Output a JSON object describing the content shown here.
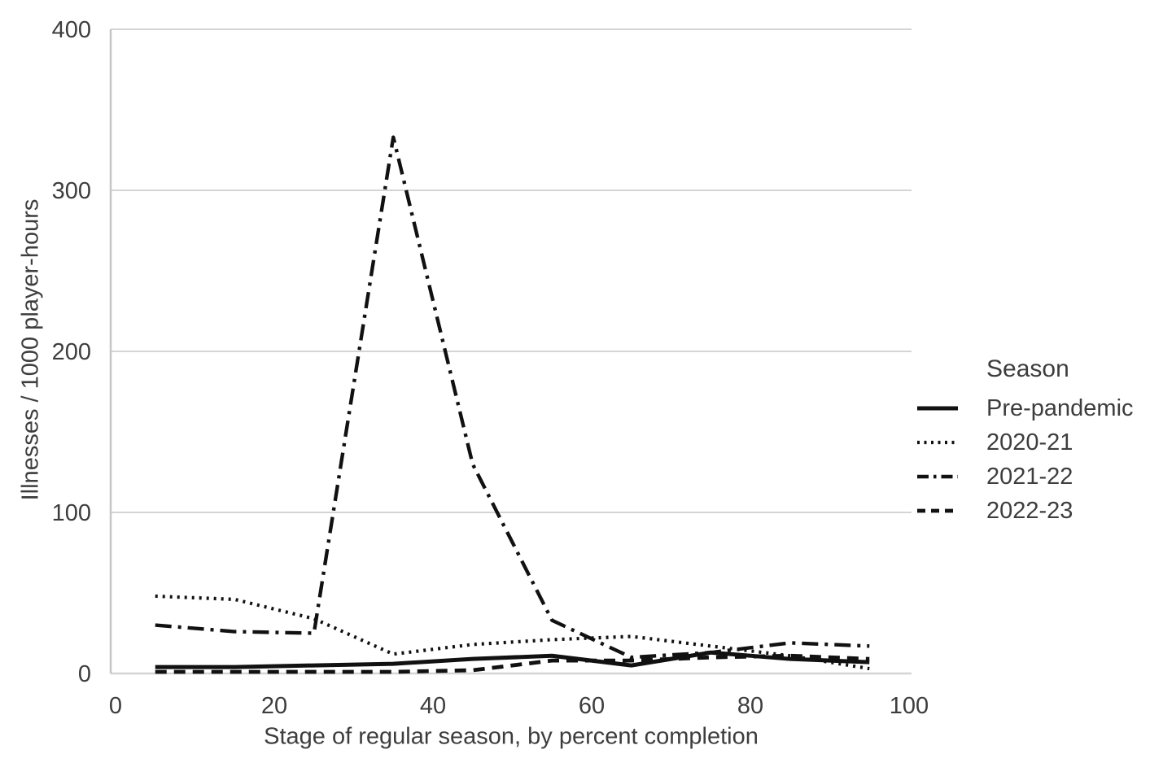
{
  "chart_data": {
    "type": "line",
    "title": "",
    "xlabel": "Stage of regular season, by percent completion",
    "ylabel": "Illnesses / 1000 player-hours",
    "xlim": [
      0,
      100
    ],
    "ylim": [
      0,
      400
    ],
    "x_ticks": [
      0,
      20,
      40,
      60,
      80,
      100
    ],
    "y_ticks": [
      0,
      100,
      200,
      300,
      400
    ],
    "grid": "horizontal-only",
    "legend_title": "Season",
    "legend_position": "right",
    "x": [
      5,
      15,
      25,
      35,
      45,
      55,
      65,
      75,
      85,
      95
    ],
    "series": [
      {
        "name": "Pre-pandemic",
        "style": "solid",
        "values": [
          4,
          4,
          5,
          6,
          9,
          11,
          5,
          13,
          9,
          7
        ]
      },
      {
        "name": "2020-21",
        "style": "dotted",
        "values": [
          48,
          46,
          34,
          12,
          18,
          21,
          23,
          17,
          11,
          3
        ]
      },
      {
        "name": "2021-22",
        "style": "dashdot",
        "values": [
          30,
          26,
          25,
          333,
          130,
          33,
          10,
          13,
          19,
          17
        ]
      },
      {
        "name": "2022-23",
        "style": "dashed",
        "values": [
          1,
          1,
          1,
          1,
          2,
          8,
          8,
          10,
          11,
          9
        ]
      }
    ]
  },
  "colors": {
    "line": "#111111",
    "grid": "#d4d4d4",
    "axis": "#c6c6c6",
    "text": "#3d3d3d",
    "background": "#ffffff"
  }
}
